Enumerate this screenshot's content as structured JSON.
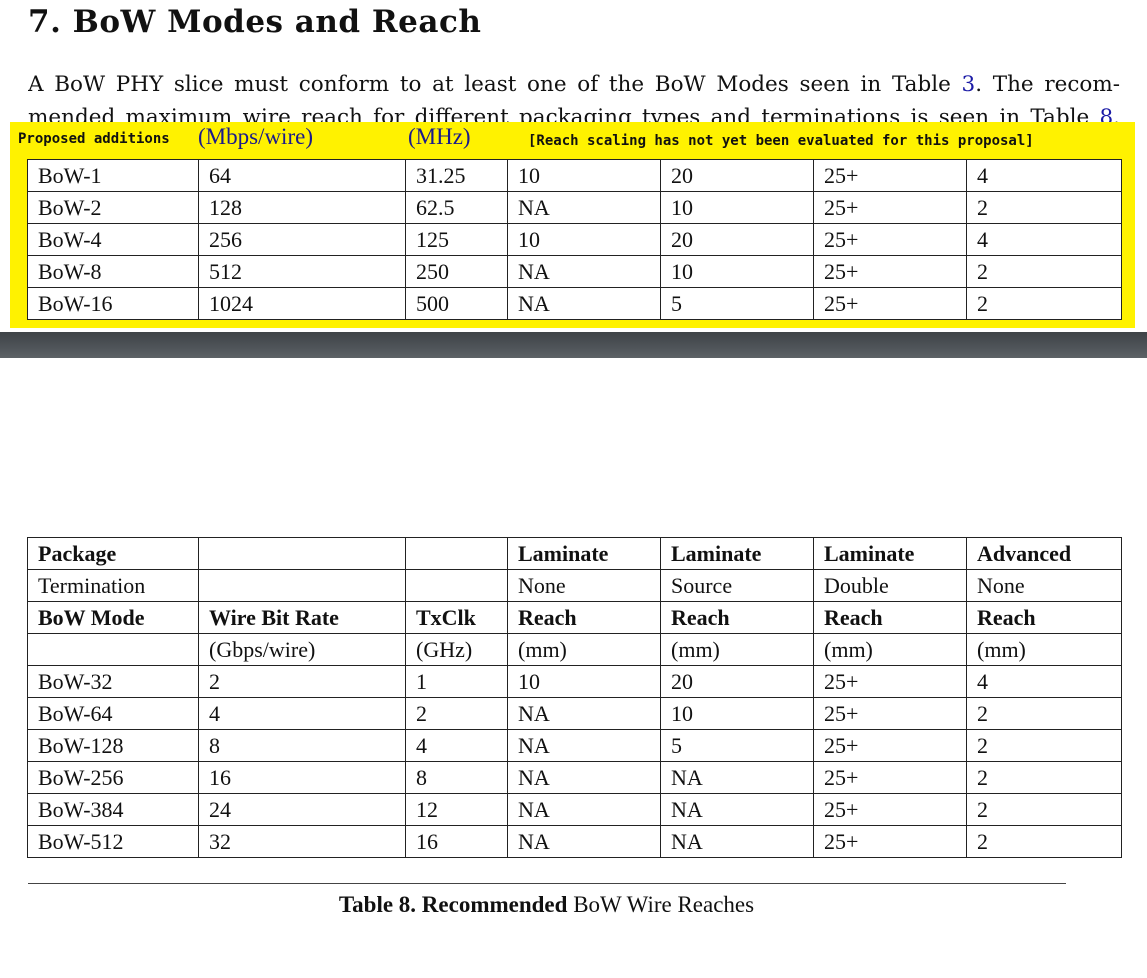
{
  "section": {
    "number": "7.",
    "title": "BoW Modes and Reach"
  },
  "paragraph": {
    "line1_a": "A BoW PHY slice must conform to at least one of the BoW Modes seen in Table ",
    "line1_ref": "3",
    "line1_b": ". The recom-",
    "line2_a": "mended maximum wire reach for different packaging types and terminations is seen in Table ",
    "line2_ref": "8",
    "line2_b": "."
  },
  "proposal": {
    "label": "Proposed additions",
    "rate_unit": "(Mbps/wire)",
    "clk_unit": "(MHz)",
    "note": "[Reach scaling has not yet been evaluated for this proposal]",
    "rows": [
      [
        "BoW-1",
        "64",
        "31.25",
        "10",
        "20",
        "25+",
        "4"
      ],
      [
        "BoW-2",
        "128",
        "62.5",
        "NA",
        "10",
        "25+",
        "2"
      ],
      [
        "BoW-4",
        "256",
        "125",
        "10",
        "20",
        "25+",
        "4"
      ],
      [
        "BoW-8",
        "512",
        "250",
        "NA",
        "10",
        "25+",
        "2"
      ],
      [
        "BoW-16",
        "1024",
        "500",
        "NA",
        "5",
        "25+",
        "2"
      ]
    ]
  },
  "table": {
    "package_row": [
      "Package",
      "",
      "",
      "Laminate",
      "Laminate",
      "Laminate",
      "Advanced"
    ],
    "termination_row": [
      "Termination",
      "",
      "",
      "None",
      "Source",
      "Double",
      "None"
    ],
    "header_row": [
      "BoW Mode",
      "Wire Bit Rate",
      "TxClk",
      "Reach",
      "Reach",
      "Reach",
      "Reach"
    ],
    "units_row": [
      "",
      "(Gbps/wire)",
      "(GHz)",
      "(mm)",
      "(mm)",
      "(mm)",
      "(mm)"
    ],
    "rows": [
      [
        "BoW-32",
        "2",
        "1",
        "10",
        "20",
        "25+",
        "4"
      ],
      [
        "BoW-64",
        "4",
        "2",
        "NA",
        "10",
        "25+",
        "2"
      ],
      [
        "BoW-128",
        "8",
        "4",
        "NA",
        "5",
        "25+",
        "2"
      ],
      [
        "BoW-256",
        "16",
        "8",
        "NA",
        "NA",
        "25+",
        "2"
      ],
      [
        "BoW-384",
        "24",
        "12",
        "NA",
        "NA",
        "25+",
        "2"
      ],
      [
        "BoW-512",
        "32",
        "16",
        "NA",
        "NA",
        "25+",
        "2"
      ]
    ]
  },
  "caption": {
    "label": "Table 8.",
    "bold_word": "Recommended",
    "rest": "BoW Wire Reaches"
  },
  "colors": {
    "highlight": "#fff200",
    "link": "#1a1aa6",
    "band": "#4f5459"
  }
}
